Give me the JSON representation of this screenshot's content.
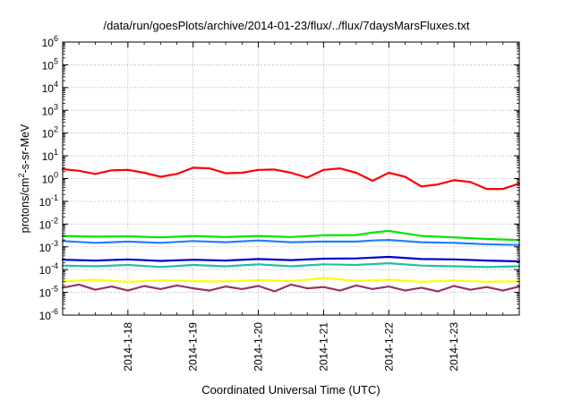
{
  "chart_data": {
    "type": "line",
    "title": "/data/run/goesPlots/archive/2014-01-23/flux/../flux/7daysMarsFluxes.txt",
    "xlabel": "Coordinated Universal Time (UTC)",
    "ylabel": "protons/cm²-s-sr-MeV",
    "y_scale": "log",
    "ylim": [
      1e-06,
      1000000.0
    ],
    "xlim": [
      "2014-01-17T00:00",
      "2014-01-24T00:00"
    ],
    "grid": true,
    "legend": "none",
    "y_ticks": [
      {
        "base": "10",
        "exp": "-6"
      },
      {
        "base": "10",
        "exp": "-5"
      },
      {
        "base": "10",
        "exp": "-4"
      },
      {
        "base": "10",
        "exp": "-3"
      },
      {
        "base": "10",
        "exp": "-2"
      },
      {
        "base": "10",
        "exp": "-1"
      },
      {
        "base": "10",
        "exp": "0"
      },
      {
        "base": "10",
        "exp": "1"
      },
      {
        "base": "10",
        "exp": "2"
      },
      {
        "base": "10",
        "exp": "3"
      },
      {
        "base": "10",
        "exp": "4"
      },
      {
        "base": "10",
        "exp": "5"
      },
      {
        "base": "10",
        "exp": "6"
      }
    ],
    "x_ticks": [
      "2014-1-18",
      "2014-1-19",
      "2014-1-20",
      "2014-1-21",
      "2014-1-22",
      "2014-1-23"
    ],
    "series": [
      {
        "color": "#ff0000",
        "points": [
          [
            "2014-01-17T00:00",
            2.6
          ],
          [
            "2014-01-17T06:00",
            2.2
          ],
          [
            "2014-01-17T12:00",
            1.6
          ],
          [
            "2014-01-17T18:00",
            2.3
          ],
          [
            "2014-01-18T00:00",
            2.4
          ],
          [
            "2014-01-18T06:00",
            1.8
          ],
          [
            "2014-01-18T12:00",
            1.2
          ],
          [
            "2014-01-18T18:00",
            1.6
          ],
          [
            "2014-01-19T00:00",
            3.0
          ],
          [
            "2014-01-19T06:00",
            2.8
          ],
          [
            "2014-01-19T12:00",
            1.7
          ],
          [
            "2014-01-19T18:00",
            1.8
          ],
          [
            "2014-01-20T00:00",
            2.4
          ],
          [
            "2014-01-20T06:00",
            2.5
          ],
          [
            "2014-01-20T12:00",
            1.8
          ],
          [
            "2014-01-20T18:00",
            1.1
          ],
          [
            "2014-01-21T00:00",
            2.4
          ],
          [
            "2014-01-21T06:00",
            2.8
          ],
          [
            "2014-01-21T12:00",
            1.8
          ],
          [
            "2014-01-21T18:00",
            0.8
          ],
          [
            "2014-01-22T00:00",
            1.8
          ],
          [
            "2014-01-22T06:00",
            1.2
          ],
          [
            "2014-01-22T12:00",
            0.45
          ],
          [
            "2014-01-22T18:00",
            0.55
          ],
          [
            "2014-01-23T00:00",
            0.85
          ],
          [
            "2014-01-23T06:00",
            0.7
          ],
          [
            "2014-01-23T12:00",
            0.35
          ],
          [
            "2014-01-23T18:00",
            0.35
          ],
          [
            "2014-01-24T00:00",
            0.6
          ]
        ]
      },
      {
        "color": "#00e600",
        "points": [
          [
            "2014-01-17T00:00",
            0.003
          ],
          [
            "2014-01-17T12:00",
            0.0028
          ],
          [
            "2014-01-18T00:00",
            0.0029
          ],
          [
            "2014-01-18T12:00",
            0.0026
          ],
          [
            "2014-01-19T00:00",
            0.003
          ],
          [
            "2014-01-19T12:00",
            0.0027
          ],
          [
            "2014-01-20T00:00",
            0.003
          ],
          [
            "2014-01-20T12:00",
            0.0027
          ],
          [
            "2014-01-21T00:00",
            0.0032
          ],
          [
            "2014-01-21T12:00",
            0.0033
          ],
          [
            "2014-01-21T18:00",
            0.0042
          ],
          [
            "2014-01-22T00:00",
            0.005
          ],
          [
            "2014-01-22T12:00",
            0.003
          ],
          [
            "2014-01-23T00:00",
            0.0026
          ],
          [
            "2014-01-23T12:00",
            0.0022
          ],
          [
            "2014-01-24T00:00",
            0.002
          ]
        ]
      },
      {
        "color": "#2080ff",
        "points": [
          [
            "2014-01-17T00:00",
            0.0018
          ],
          [
            "2014-01-17T12:00",
            0.0015
          ],
          [
            "2014-01-18T00:00",
            0.0017
          ],
          [
            "2014-01-18T12:00",
            0.0015
          ],
          [
            "2014-01-19T00:00",
            0.0018
          ],
          [
            "2014-01-19T12:00",
            0.0016
          ],
          [
            "2014-01-20T00:00",
            0.0019
          ],
          [
            "2014-01-20T12:00",
            0.0016
          ],
          [
            "2014-01-21T00:00",
            0.0017
          ],
          [
            "2014-01-21T12:00",
            0.0017
          ],
          [
            "2014-01-21T18:00",
            0.0019
          ],
          [
            "2014-01-22T00:00",
            0.002
          ],
          [
            "2014-01-22T12:00",
            0.0016
          ],
          [
            "2014-01-23T00:00",
            0.0015
          ],
          [
            "2014-01-23T12:00",
            0.0013
          ],
          [
            "2014-01-24T00:00",
            0.0012
          ]
        ]
      },
      {
        "color": "#0000cc",
        "points": [
          [
            "2014-01-17T00:00",
            0.00027
          ],
          [
            "2014-01-17T12:00",
            0.00025
          ],
          [
            "2014-01-18T00:00",
            0.00028
          ],
          [
            "2014-01-18T12:00",
            0.00024
          ],
          [
            "2014-01-19T00:00",
            0.00027
          ],
          [
            "2014-01-19T12:00",
            0.00025
          ],
          [
            "2014-01-20T00:00",
            0.00029
          ],
          [
            "2014-01-20T12:00",
            0.00026
          ],
          [
            "2014-01-21T00:00",
            0.0003
          ],
          [
            "2014-01-21T12:00",
            0.00031
          ],
          [
            "2014-01-22T00:00",
            0.00036
          ],
          [
            "2014-01-22T12:00",
            0.00029
          ],
          [
            "2014-01-23T00:00",
            0.00028
          ],
          [
            "2014-01-23T12:00",
            0.00025
          ],
          [
            "2014-01-24T00:00",
            0.00023
          ]
        ]
      },
      {
        "color": "#20c0a0",
        "points": [
          [
            "2014-01-17T00:00",
            0.00015
          ],
          [
            "2014-01-17T12:00",
            0.00014
          ],
          [
            "2014-01-18T00:00",
            0.00016
          ],
          [
            "2014-01-18T12:00",
            0.00013
          ],
          [
            "2014-01-19T00:00",
            0.00016
          ],
          [
            "2014-01-19T12:00",
            0.00014
          ],
          [
            "2014-01-20T00:00",
            0.00017
          ],
          [
            "2014-01-20T12:00",
            0.00014
          ],
          [
            "2014-01-21T00:00",
            0.00017
          ],
          [
            "2014-01-21T12:00",
            0.00016
          ],
          [
            "2014-01-22T00:00",
            0.00019
          ],
          [
            "2014-01-22T12:00",
            0.00015
          ],
          [
            "2014-01-23T00:00",
            0.00014
          ],
          [
            "2014-01-23T12:00",
            0.00013
          ],
          [
            "2014-01-24T00:00",
            0.00014
          ]
        ]
      },
      {
        "color": "#ffff00",
        "points": [
          [
            "2014-01-17T00:00",
            3e-05
          ],
          [
            "2014-01-17T12:00",
            3.6e-05
          ],
          [
            "2014-01-18T00:00",
            2.9e-05
          ],
          [
            "2014-01-18T12:00",
            3.4e-05
          ],
          [
            "2014-01-19T00:00",
            3.1e-05
          ],
          [
            "2014-01-19T12:00",
            3e-05
          ],
          [
            "2014-01-20T00:00",
            3.5e-05
          ],
          [
            "2014-01-20T12:00",
            3.1e-05
          ],
          [
            "2014-01-21T00:00",
            4.2e-05
          ],
          [
            "2014-01-21T12:00",
            3.2e-05
          ],
          [
            "2014-01-22T00:00",
            3.6e-05
          ],
          [
            "2014-01-22T12:00",
            2.9e-05
          ],
          [
            "2014-01-23T00:00",
            3.3e-05
          ],
          [
            "2014-01-23T12:00",
            2.9e-05
          ],
          [
            "2014-01-24T00:00",
            3.1e-05
          ]
        ]
      },
      {
        "color": "#993366",
        "points": [
          [
            "2014-01-17T00:00",
            1.6e-05
          ],
          [
            "2014-01-17T06:00",
            2.2e-05
          ],
          [
            "2014-01-17T12:00",
            1.3e-05
          ],
          [
            "2014-01-17T18:00",
            1.8e-05
          ],
          [
            "2014-01-18T00:00",
            1.2e-05
          ],
          [
            "2014-01-18T06:00",
            1.9e-05
          ],
          [
            "2014-01-18T12:00",
            1.4e-05
          ],
          [
            "2014-01-18T18:00",
            2e-05
          ],
          [
            "2014-01-19T00:00",
            1.5e-05
          ],
          [
            "2014-01-19T06:00",
            1.2e-05
          ],
          [
            "2014-01-19T12:00",
            1.8e-05
          ],
          [
            "2014-01-19T18:00",
            1.4e-05
          ],
          [
            "2014-01-20T00:00",
            1.9e-05
          ],
          [
            "2014-01-20T06:00",
            1.1e-05
          ],
          [
            "2014-01-20T12:00",
            2.2e-05
          ],
          [
            "2014-01-20T18:00",
            1.5e-05
          ],
          [
            "2014-01-21T00:00",
            1.7e-05
          ],
          [
            "2014-01-21T06:00",
            1.2e-05
          ],
          [
            "2014-01-21T12:00",
            2e-05
          ],
          [
            "2014-01-21T18:00",
            1.4e-05
          ],
          [
            "2014-01-22T00:00",
            1.8e-05
          ],
          [
            "2014-01-22T06:00",
            1.2e-05
          ],
          [
            "2014-01-22T12:00",
            1.6e-05
          ],
          [
            "2014-01-22T18:00",
            1.1e-05
          ],
          [
            "2014-01-23T00:00",
            1.9e-05
          ],
          [
            "2014-01-23T06:00",
            1.3e-05
          ],
          [
            "2014-01-23T12:00",
            1.7e-05
          ],
          [
            "2014-01-23T18:00",
            1.2e-05
          ],
          [
            "2014-01-24T00:00",
            1.8e-05
          ]
        ]
      }
    ]
  }
}
